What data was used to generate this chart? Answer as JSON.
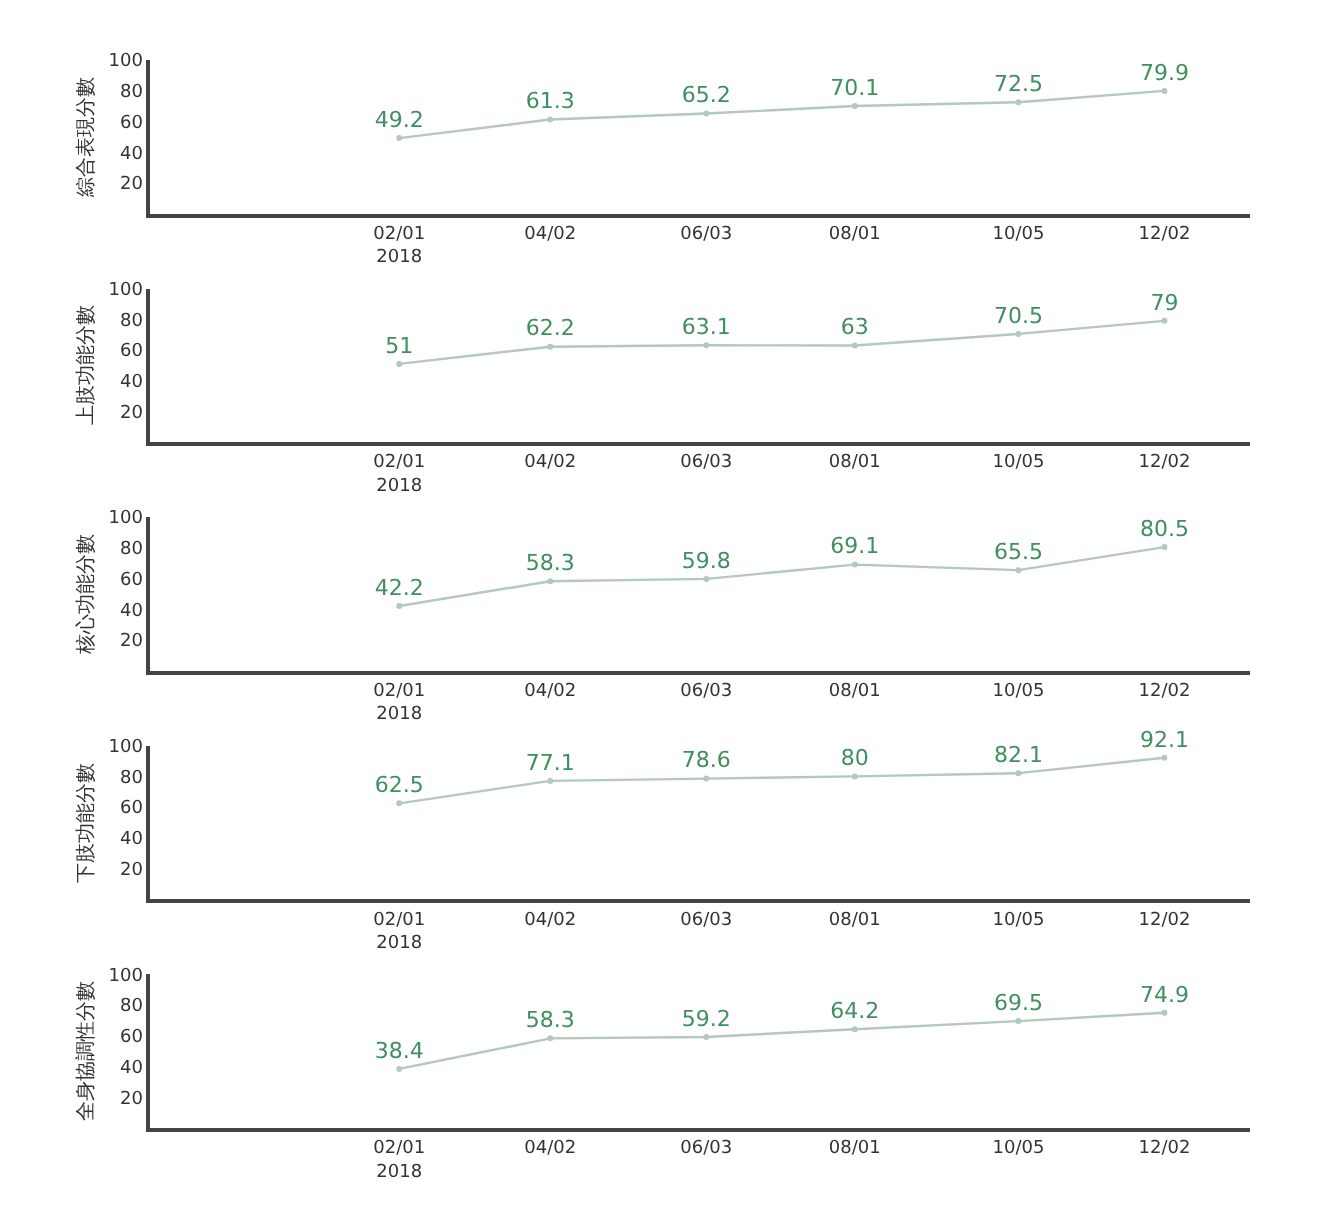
{
  "chart_data": [
    {
      "type": "line",
      "ylabel": "綜合表現分數",
      "x": [
        "2018-02-01",
        "2018-04-02",
        "2018-06-03",
        "2018-08-01",
        "2018-10-05",
        "2018-12-02"
      ],
      "series": [
        {
          "color": "#b4c8bc",
          "values": [
            49.2,
            61.3,
            65.2,
            70.1,
            72.5,
            79.9
          ]
        }
      ],
      "xlim": [
        "2017-10-25",
        "2019-01-05"
      ],
      "xticks": [
        {
          "value": "2018-02-01",
          "label": "02/01\n2018"
        },
        {
          "value": "2018-04-02",
          "label": "04/02"
        },
        {
          "value": "2018-06-03",
          "label": "06/03"
        },
        {
          "value": "2018-08-01",
          "label": "08/01"
        },
        {
          "value": "2018-10-05",
          "label": "10/05"
        },
        {
          "value": "2018-12-02",
          "label": "12/02"
        }
      ],
      "ylim": [
        0,
        100
      ],
      "yticks": [
        20,
        40,
        60,
        80,
        100
      ],
      "data_labels": true,
      "marker": "circle",
      "grid": false
    },
    {
      "type": "line",
      "ylabel": "上肢功能分數",
      "x": [
        "2018-02-01",
        "2018-04-02",
        "2018-06-03",
        "2018-08-01",
        "2018-10-05",
        "2018-12-02"
      ],
      "series": [
        {
          "color": "#b4c8bc",
          "values": [
            51,
            62.2,
            63.1,
            63,
            70.5,
            79
          ]
        }
      ],
      "xlim": [
        "2017-10-25",
        "2019-01-05"
      ],
      "xticks": [
        {
          "value": "2018-02-01",
          "label": "02/01\n2018"
        },
        {
          "value": "2018-04-02",
          "label": "04/02"
        },
        {
          "value": "2018-06-03",
          "label": "06/03"
        },
        {
          "value": "2018-08-01",
          "label": "08/01"
        },
        {
          "value": "2018-10-05",
          "label": "10/05"
        },
        {
          "value": "2018-12-02",
          "label": "12/02"
        }
      ],
      "ylim": [
        0,
        100
      ],
      "yticks": [
        20,
        40,
        60,
        80,
        100
      ],
      "data_labels": true,
      "marker": "circle",
      "grid": false
    },
    {
      "type": "line",
      "ylabel": "核心功能分數",
      "x": [
        "2018-02-01",
        "2018-04-02",
        "2018-06-03",
        "2018-08-01",
        "2018-10-05",
        "2018-12-02"
      ],
      "series": [
        {
          "color": "#b4c8bc",
          "values": [
            42.2,
            58.3,
            59.8,
            69.1,
            65.5,
            80.5
          ]
        }
      ],
      "xlim": [
        "2017-10-25",
        "2019-01-05"
      ],
      "xticks": [
        {
          "value": "2018-02-01",
          "label": "02/01\n2018"
        },
        {
          "value": "2018-04-02",
          "label": "04/02"
        },
        {
          "value": "2018-06-03",
          "label": "06/03"
        },
        {
          "value": "2018-08-01",
          "label": "08/01"
        },
        {
          "value": "2018-10-05",
          "label": "10/05"
        },
        {
          "value": "2018-12-02",
          "label": "12/02"
        }
      ],
      "ylim": [
        0,
        100
      ],
      "yticks": [
        20,
        40,
        60,
        80,
        100
      ],
      "data_labels": true,
      "marker": "circle",
      "grid": false
    },
    {
      "type": "line",
      "ylabel": "下肢功能分數",
      "x": [
        "2018-02-01",
        "2018-04-02",
        "2018-06-03",
        "2018-08-01",
        "2018-10-05",
        "2018-12-02"
      ],
      "series": [
        {
          "color": "#b4c8bc",
          "values": [
            62.5,
            77.1,
            78.6,
            80,
            82.1,
            92.1
          ]
        }
      ],
      "xlim": [
        "2017-10-25",
        "2019-01-05"
      ],
      "xticks": [
        {
          "value": "2018-02-01",
          "label": "02/01\n2018"
        },
        {
          "value": "2018-04-02",
          "label": "04/02"
        },
        {
          "value": "2018-06-03",
          "label": "06/03"
        },
        {
          "value": "2018-08-01",
          "label": "08/01"
        },
        {
          "value": "2018-10-05",
          "label": "10/05"
        },
        {
          "value": "2018-12-02",
          "label": "12/02"
        }
      ],
      "ylim": [
        0,
        100
      ],
      "yticks": [
        20,
        40,
        60,
        80,
        100
      ],
      "data_labels": true,
      "marker": "circle",
      "grid": false
    },
    {
      "type": "line",
      "ylabel": "全身協調性分數",
      "x": [
        "2018-02-01",
        "2018-04-02",
        "2018-06-03",
        "2018-08-01",
        "2018-10-05",
        "2018-12-02"
      ],
      "series": [
        {
          "color": "#b4c8bc",
          "values": [
            38.4,
            58.3,
            59.2,
            64.2,
            69.5,
            74.9
          ]
        }
      ],
      "xlim": [
        "2017-10-25",
        "2019-01-05"
      ],
      "xticks": [
        {
          "value": "2018-02-01",
          "label": "02/01\n2018"
        },
        {
          "value": "2018-04-02",
          "label": "04/02"
        },
        {
          "value": "2018-06-03",
          "label": "06/03"
        },
        {
          "value": "2018-08-01",
          "label": "08/01"
        },
        {
          "value": "2018-10-05",
          "label": "10/05"
        },
        {
          "value": "2018-12-02",
          "label": "12/02"
        }
      ],
      "ylim": [
        0,
        100
      ],
      "yticks": [
        20,
        40,
        60,
        80,
        100
      ],
      "data_labels": true,
      "marker": "circle",
      "grid": false
    }
  ]
}
